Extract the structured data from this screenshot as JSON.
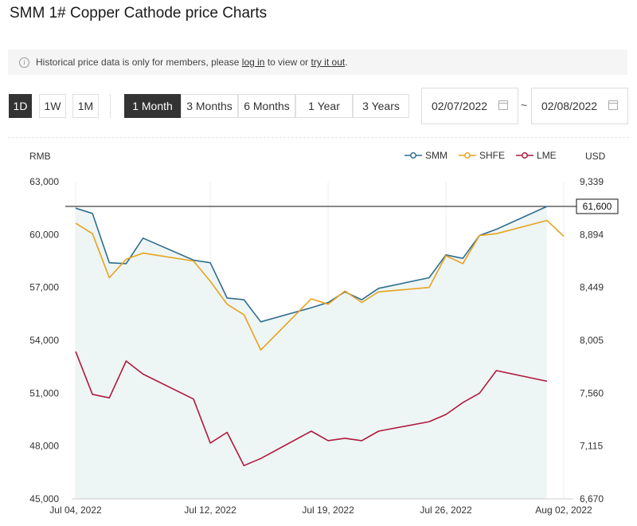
{
  "page": {
    "title": "SMM 1# Copper Cathode price Charts"
  },
  "notice": {
    "prefix": "Historical price data is only for members, please",
    "login_link": "log in",
    "middle": "to view or",
    "try_link": "try it out",
    "suffix": "."
  },
  "interval_buttons": [
    {
      "label": "1D",
      "active": true
    },
    {
      "label": "1W",
      "active": false
    },
    {
      "label": "1M",
      "active": false
    }
  ],
  "range_buttons": [
    {
      "label": "1 Month",
      "active": true
    },
    {
      "label": "3 Months",
      "active": false
    },
    {
      "label": "6 Months",
      "active": false
    },
    {
      "label": "1 Year",
      "active": false
    },
    {
      "label": "3 Years",
      "active": false
    }
  ],
  "date_range": {
    "start": "02/07/2022",
    "end": "02/08/2022",
    "separator": "~"
  },
  "colors": {
    "smm": "#2f6e8e",
    "shfe": "#e7a31b",
    "lme": "#b0193e",
    "area": "#eef5f5",
    "active_button": "#333333"
  },
  "chart_data": {
    "type": "line",
    "left_axis_unit": "RMB",
    "right_axis_unit": "USD",
    "left_ylim": [
      45000,
      63000
    ],
    "left_ticks": [
      "63,000",
      "60,000",
      "57,000",
      "54,000",
      "51,000",
      "48,000",
      "45,000"
    ],
    "right_ylim": [
      6670,
      9339
    ],
    "right_ticks": [
      "9,339",
      "8,894",
      "8,449",
      "8,005",
      "7,560",
      "7,115",
      "6,670"
    ],
    "x_tick_labels": [
      "Jul 04, 2022",
      "Jul 12, 2022",
      "Jul 19, 2022",
      "Jul 26, 2022",
      "Aug 02, 2022"
    ],
    "x_tick_dates": [
      "2022-07-04",
      "2022-07-12",
      "2022-07-19",
      "2022-07-26",
      "2022-08-02"
    ],
    "x_range": [
      "2022-07-04",
      "2022-08-02"
    ],
    "reference_line": {
      "value": 61600,
      "label": "61,600"
    },
    "grid": "vertical",
    "legend_placement": "top-right",
    "dates": [
      "2022-07-04",
      "2022-07-05",
      "2022-07-06",
      "2022-07-07",
      "2022-07-08",
      "2022-07-11",
      "2022-07-12",
      "2022-07-13",
      "2022-07-14",
      "2022-07-15",
      "2022-07-18",
      "2022-07-19",
      "2022-07-20",
      "2022-07-21",
      "2022-07-22",
      "2022-07-25",
      "2022-07-26",
      "2022-07-27",
      "2022-07-28",
      "2022-07-29",
      "2022-08-01",
      "2022-08-02"
    ],
    "series": [
      {
        "name": "SMM",
        "axis": "left",
        "values": [
          61500,
          61200,
          58400,
          58350,
          59800,
          58550,
          58400,
          56400,
          56300,
          55050,
          55850,
          56150,
          56750,
          56300,
          56950,
          57550,
          58850,
          58650,
          59950,
          60300,
          61600,
          null
        ]
      },
      {
        "name": "SHFE",
        "axis": "left",
        "values": [
          60650,
          60050,
          57550,
          58600,
          58950,
          58500,
          57350,
          56050,
          55450,
          53450,
          56350,
          56050,
          56800,
          56150,
          56750,
          57000,
          58800,
          58350,
          59950,
          60050,
          60800,
          59900
        ]
      },
      {
        "name": "LME",
        "axis": "right",
        "values": [
          7910,
          7550,
          7520,
          7830,
          7720,
          7510,
          7140,
          7230,
          6950,
          7010,
          7240,
          7160,
          7180,
          7160,
          7240,
          7320,
          7380,
          7480,
          7560,
          7750,
          7660,
          null
        ]
      }
    ]
  }
}
